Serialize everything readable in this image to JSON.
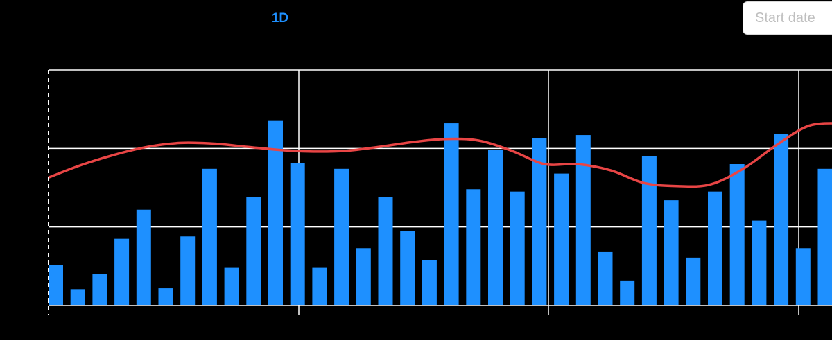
{
  "toolbar": {
    "range_tab_label": "1D",
    "start_date_placeholder": "Start date"
  },
  "colors": {
    "background": "#000000",
    "bar": "#1e90ff",
    "line": "#e84545",
    "grid": "#ffffff",
    "accent": "#1e90ff"
  },
  "chart_data": {
    "type": "bar",
    "title": "",
    "xlabel": "",
    "ylabel": "",
    "ylim": [
      0,
      300
    ],
    "grid": {
      "horizontal": true,
      "vertical": true
    },
    "legend": "none",
    "series": [
      {
        "type": "bar",
        "values": [
          52,
          20,
          40,
          85,
          122,
          22,
          88,
          174,
          48,
          138,
          235,
          181,
          48,
          174,
          73,
          138,
          95,
          58,
          232,
          148,
          198,
          145,
          213,
          168,
          217,
          68,
          31,
          190,
          134,
          61,
          145,
          180,
          108,
          218,
          73,
          174
        ]
      },
      {
        "type": "line",
        "values": [
          163,
          179,
          192,
          202,
          207,
          206,
          202,
          198,
          196,
          197,
          202,
          208,
          212,
          210,
          197,
          180,
          180,
          172,
          156,
          152,
          154,
          174,
          204,
          229,
          232
        ]
      }
    ]
  }
}
